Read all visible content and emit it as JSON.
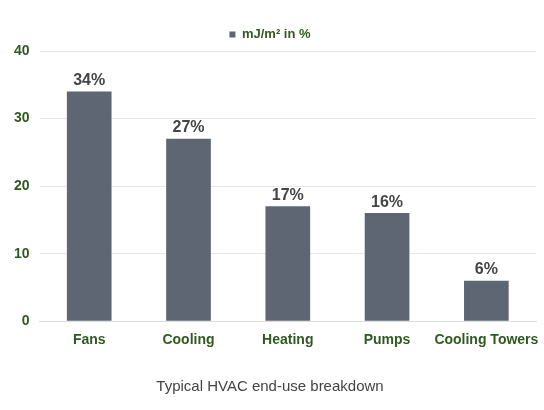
{
  "chart_data": {
    "type": "bar",
    "title": "Typical HVAC end-use breakdown",
    "categories": [
      "Fans",
      "Cooling",
      "Heating",
      "Pumps",
      "Cooling Towers"
    ],
    "series": [
      {
        "name": "mJ/m² in %",
        "color": "#5d6672",
        "values": [
          34,
          27,
          17,
          16,
          6
        ],
        "value_labels": [
          "34%",
          "27%",
          "17%",
          "16%",
          "6%"
        ]
      }
    ],
    "ylim": [
      0,
      40
    ],
    "yticks": [
      0,
      10,
      20,
      30,
      40
    ],
    "grid": true,
    "legend": "top",
    "data_labels": true
  }
}
